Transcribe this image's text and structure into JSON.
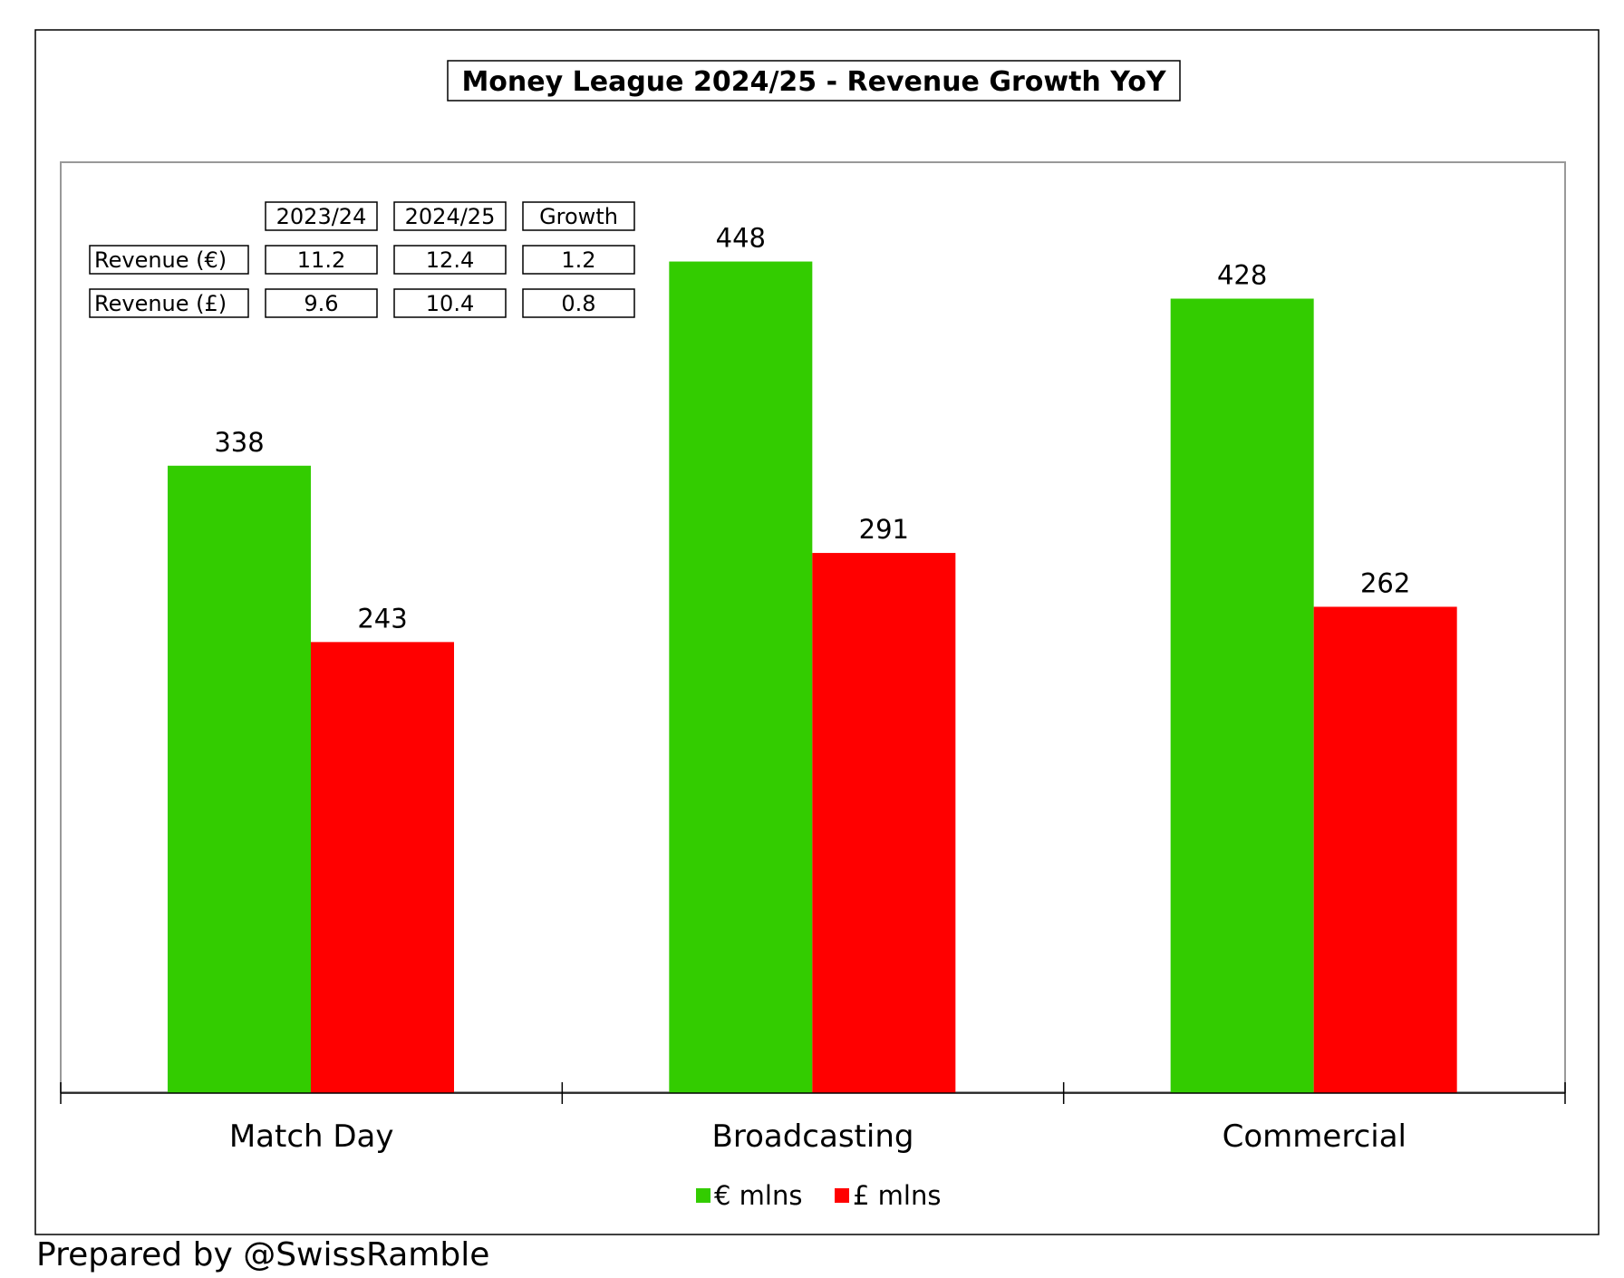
{
  "chart_data": {
    "type": "bar",
    "title": "Money League 2024/25 - Revenue Growth YoY",
    "categories": [
      "Match Day",
      "Broadcasting",
      "Commercial"
    ],
    "series": [
      {
        "name": "€ mlns",
        "values": [
          338,
          448,
          428
        ],
        "color": "#33cc00"
      },
      {
        "name": "£ mlns",
        "values": [
          243,
          291,
          262
        ],
        "color": "#ff0000"
      }
    ],
    "ylim": [
      0,
      500
    ],
    "grid": false,
    "legend": "bottom-center",
    "table": {
      "headers": [
        "2023/24",
        "2024/25",
        "Growth"
      ],
      "rows": [
        {
          "label": "Revenue (€)",
          "values": [
            "11.2",
            "12.4",
            "1.2"
          ]
        },
        {
          "label": "Revenue (£)",
          "values": [
            "9.6",
            "10.4",
            "0.8"
          ]
        }
      ]
    }
  },
  "footer": {
    "credit": "Prepared by @SwissRamble"
  }
}
